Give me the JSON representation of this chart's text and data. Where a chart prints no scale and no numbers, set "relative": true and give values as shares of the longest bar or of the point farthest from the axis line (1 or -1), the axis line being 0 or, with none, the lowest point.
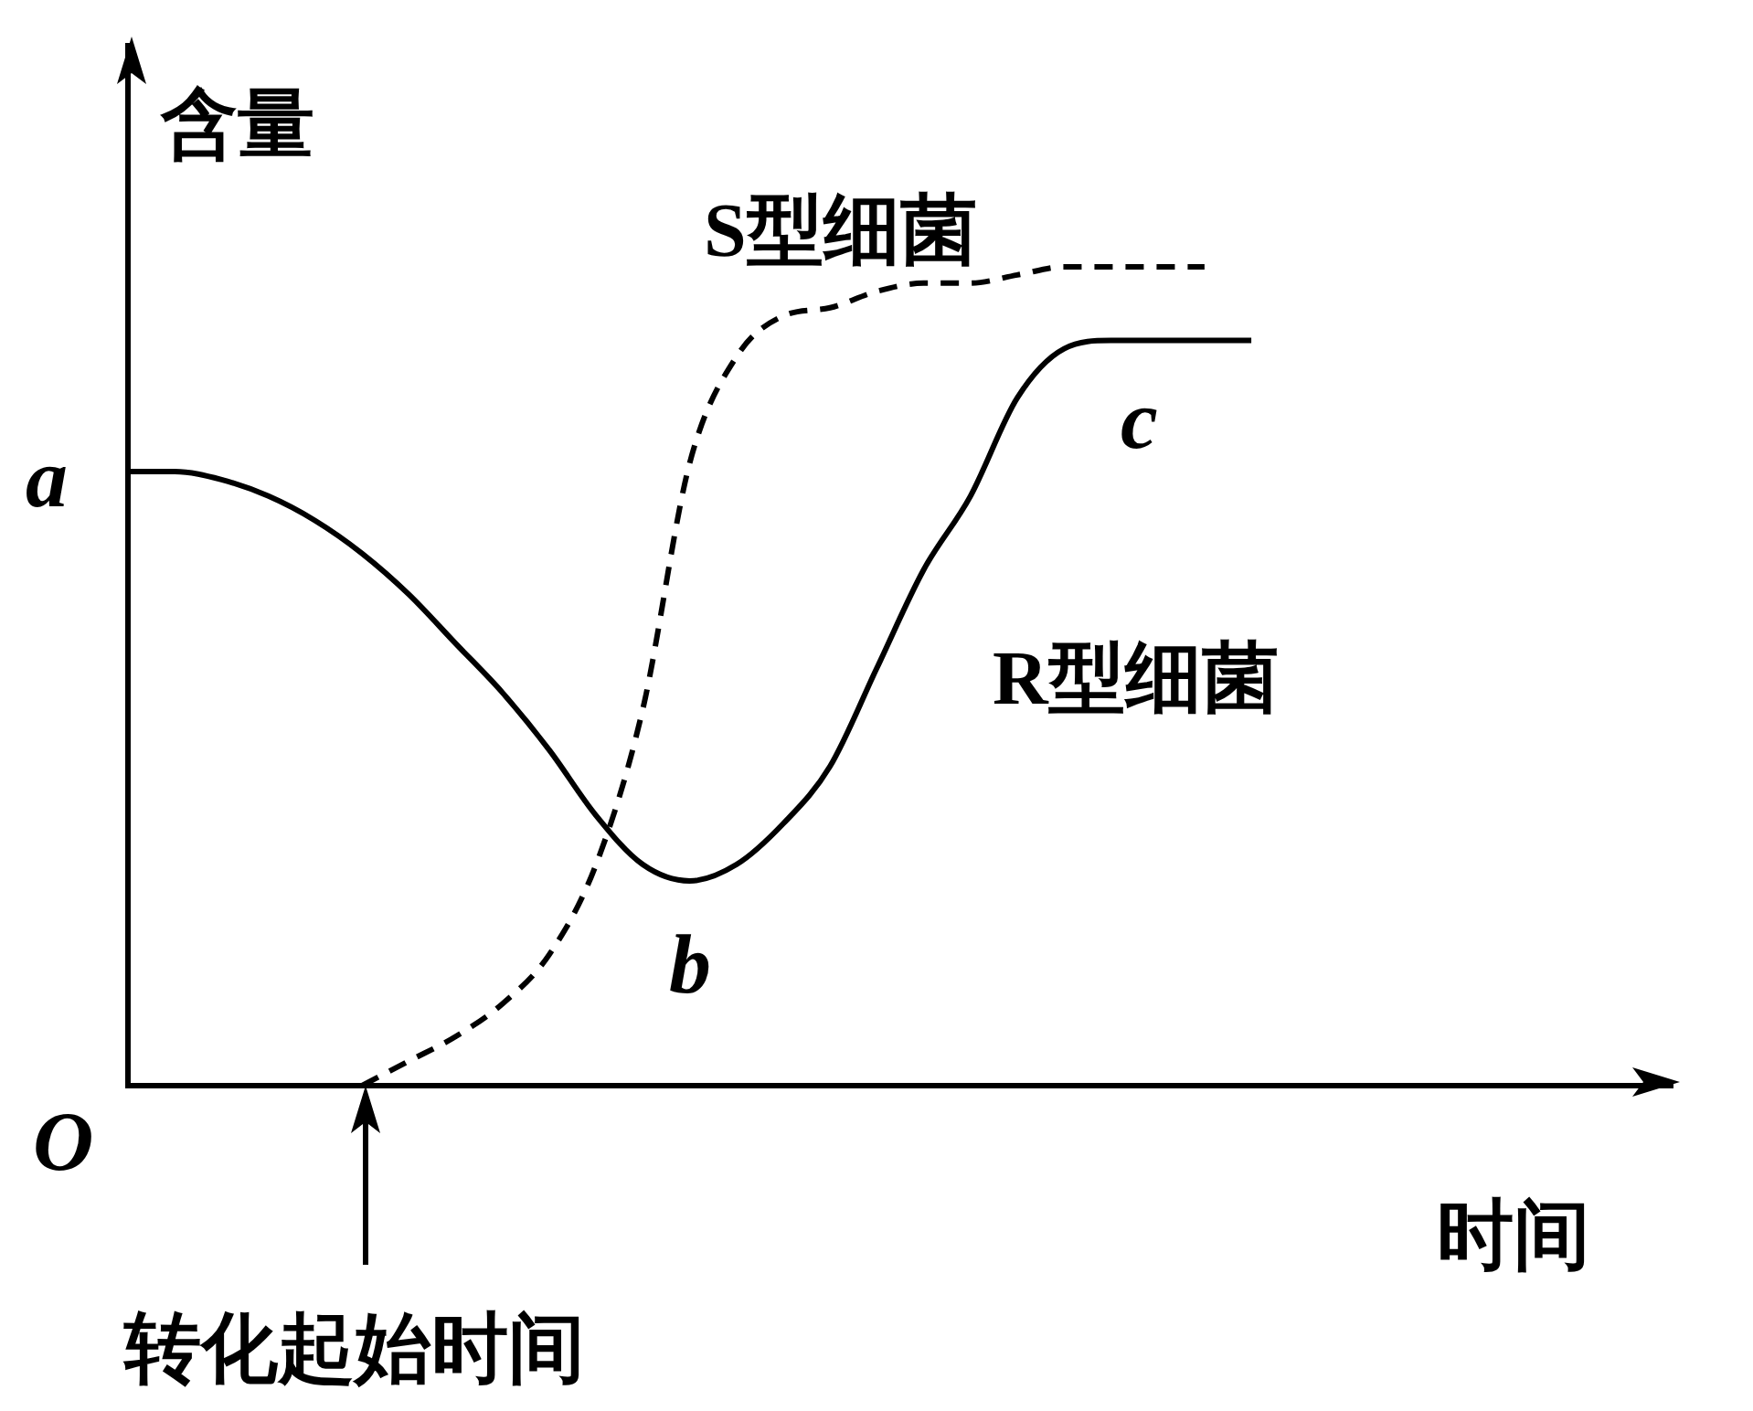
{
  "chart_data": {
    "type": "line",
    "relative": true,
    "xlabel": "时间",
    "ylabel": "含量",
    "legend": false,
    "grid": false,
    "tick_labels": false,
    "categories": [
      null,
      null,
      null,
      null,
      null,
      null,
      null,
      null,
      null,
      null,
      null,
      null,
      null,
      null,
      null,
      null,
      null,
      null,
      null,
      null,
      null,
      null,
      null,
      null,
      null,
      null,
      null,
      null,
      null,
      null,
      null,
      null,
      null,
      null
    ],
    "series": [
      {
        "name": "S型细菌",
        "color": "#000000",
        "line_style": "dashed",
        "values": [
          null,
          null,
          null,
          null,
          null,
          0,
          0.03,
          0.06,
          0.1,
          0.16,
          0.27,
          0.46,
          0.76,
          0.89,
          0.94,
          0.95,
          0.97,
          0.98,
          0.98,
          0.99,
          1,
          1,
          1,
          1,
          null,
          null,
          null,
          null,
          null,
          null,
          null,
          null,
          null,
          null
        ]
      },
      {
        "name": "R型细菌",
        "color": "#000000",
        "line_style": "solid",
        "values": [
          0.75,
          0.75,
          0.74,
          0.72,
          0.69,
          0.65,
          0.6,
          0.54,
          0.48,
          0.41,
          0.33,
          0.27,
          0.25,
          0.27,
          0.32,
          0.39,
          0.51,
          0.63,
          0.72,
          0.84,
          0.9,
          0.91,
          0.91,
          0.91,
          0.91,
          null,
          null,
          null,
          null,
          null,
          null,
          null,
          null,
          null
        ]
      }
    ],
    "annotations": [
      "a",
      "b",
      "c",
      "O",
      "转化起始时间"
    ]
  }
}
